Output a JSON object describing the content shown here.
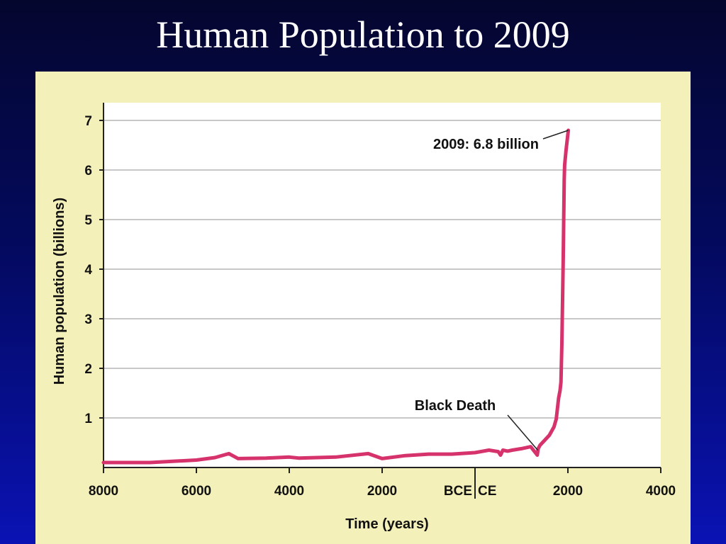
{
  "slide": {
    "title": "Human Population to 2009"
  },
  "colors": {
    "background_top": "#05062e",
    "background_bottom": "#0a12b4",
    "panel": "#f4f0b9",
    "plot_area": "#ffffff",
    "line": "#d6336c",
    "grid": "#c8c8c8"
  },
  "chart_data": {
    "type": "line",
    "title": "",
    "xlabel": "Time (years)",
    "ylabel": "Human population (billions)",
    "xlim": [
      -8000,
      4000
    ],
    "ylim": [
      0,
      7
    ],
    "grid": "horizontal",
    "x_ticks": [
      {
        "value": -8000,
        "label": "8000"
      },
      {
        "value": -6000,
        "label": "6000"
      },
      {
        "value": -4000,
        "label": "4000"
      },
      {
        "value": -2000,
        "label": "2000"
      },
      {
        "value": 2000,
        "label": "2000"
      },
      {
        "value": 4000,
        "label": "4000"
      }
    ],
    "era_divider": {
      "value": 0,
      "left_label": "BCE",
      "right_label": "CE"
    },
    "y_ticks": [
      {
        "value": 1,
        "label": "1"
      },
      {
        "value": 2,
        "label": "2"
      },
      {
        "value": 3,
        "label": "3"
      },
      {
        "value": 4,
        "label": "4"
      },
      {
        "value": 5,
        "label": "5"
      },
      {
        "value": 6,
        "label": "6"
      },
      {
        "value": 7,
        "label": "7"
      }
    ],
    "series": [
      {
        "x": [
          -8000,
          -7000,
          -6000,
          -5600,
          -5300,
          -5100,
          -4500,
          -4000,
          -3800,
          -3000,
          -2300,
          -2000,
          -1500,
          -1000,
          -500,
          0,
          300,
          500,
          550,
          600,
          700,
          800,
          1000,
          1200,
          1300,
          1340,
          1360,
          1400,
          1500,
          1600,
          1700,
          1750,
          1800,
          1830,
          1850,
          1870,
          1900,
          1920,
          1930,
          1960,
          2009
        ],
        "y": [
          0.1,
          0.1,
          0.15,
          0.2,
          0.28,
          0.18,
          0.19,
          0.21,
          0.19,
          0.21,
          0.28,
          0.18,
          0.24,
          0.27,
          0.27,
          0.3,
          0.35,
          0.32,
          0.25,
          0.35,
          0.33,
          0.35,
          0.38,
          0.42,
          0.3,
          0.25,
          0.38,
          0.45,
          0.55,
          0.65,
          0.82,
          0.98,
          1.4,
          1.55,
          1.72,
          2.5,
          4.2,
          5.8,
          6.1,
          6.4,
          6.8
        ]
      }
    ],
    "annotations": [
      {
        "label": "2009: 6.8 billion",
        "x": 2009,
        "y": 6.8
      },
      {
        "label": "Black Death",
        "x": 1350,
        "y": 0.35
      }
    ]
  }
}
